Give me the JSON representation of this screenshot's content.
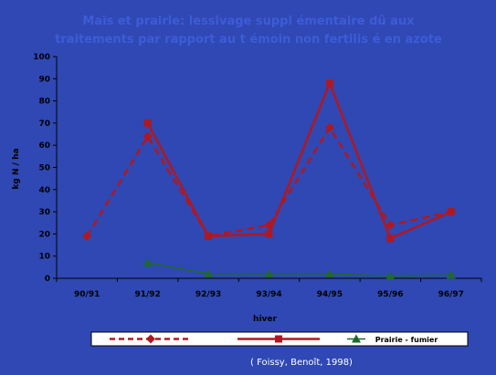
{
  "chart_data": {
    "type": "line",
    "title": "Maïs et prairie: lessivage suppl émentaire dû aux traitements par rapport au t émoin non fertilis é en azote",
    "title_lines": [
      "Maïs et prairie: lessivage suppl émentaire dû aux",
      "traitements par rapport au t émoin non fertilis é en azote"
    ],
    "xlabel": "hiver",
    "ylabel": "kg N / ha",
    "categories": [
      "90/91",
      "91/92",
      "92/93",
      "93/94",
      "94/95",
      "95/96",
      "96/97"
    ],
    "ylim": [
      0,
      100
    ],
    "yticks": [
      0,
      10,
      20,
      30,
      40,
      50,
      60,
      70,
      80,
      90,
      100
    ],
    "grid": false,
    "legend_position": "bottom",
    "series": [
      {
        "name": "",
        "values": [
          19,
          64,
          19,
          24,
          68,
          24,
          30
        ],
        "color": "#b01820",
        "style": "dashed",
        "marker": "diamond"
      },
      {
        "name": "",
        "values": [
          null,
          70,
          19,
          20,
          88,
          18,
          30
        ],
        "color": "#b01820",
        "style": "solid",
        "marker": "square"
      },
      {
        "name": "Prairie - fumier",
        "values": [
          null,
          7,
          2,
          2,
          2,
          1,
          1.5
        ],
        "color": "#1f6a2a",
        "style": "solid",
        "marker": "triangle"
      }
    ],
    "source": "( Foissy, Benoît, 1998)"
  },
  "colors": {
    "background": "#2f48b4",
    "title": "#3d5cd6",
    "axis": "#000000",
    "legend_box": "#ffffff"
  }
}
